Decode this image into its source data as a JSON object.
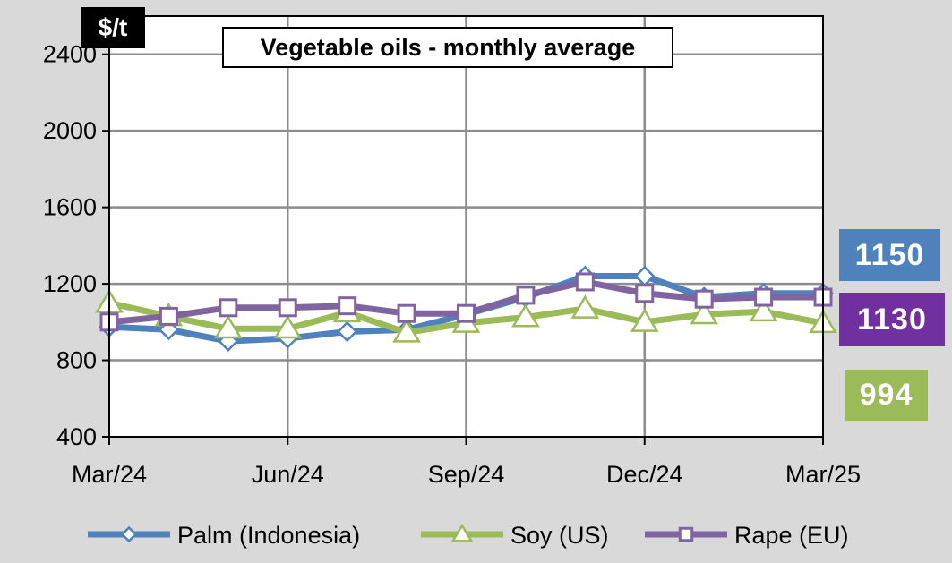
{
  "chart_data": {
    "type": "line",
    "title": "Vegetable oils - monthly average",
    "ylabel": "$/t",
    "ylim": [
      400,
      2600
    ],
    "yticks": [
      400,
      800,
      1200,
      1600,
      2000,
      2400
    ],
    "x": [
      "Mar/24",
      "Apr/24",
      "May/24",
      "Jun/24",
      "Jul/24",
      "Aug/24",
      "Sep/24",
      "Oct/24",
      "Nov/24",
      "Dec/24",
      "Jan/25",
      "Feb/25",
      "Mar/25"
    ],
    "xtick_labels": [
      "Mar/24",
      "Jun/24",
      "Sep/24",
      "Dec/24",
      "Mar/25"
    ],
    "grid": true,
    "legend": "bottom",
    "series": [
      {
        "name": "Palm (Indonesia)",
        "color": "#4f81bd",
        "marker": "diamond",
        "values": [
          975,
          960,
          900,
          915,
          950,
          960,
          1040,
          1130,
          1240,
          1240,
          1130,
          1150,
          1150
        ],
        "end_label": "1150"
      },
      {
        "name": "Soy (US)",
        "color": "#9bbb59",
        "marker": "triangle",
        "values": [
          1100,
          1030,
          965,
          965,
          1050,
          945,
          995,
          1025,
          1070,
          1000,
          1040,
          1055,
          994
        ],
        "end_label": "994"
      },
      {
        "name": "Rape (EU)",
        "color": "#8064a2",
        "marker": "square",
        "values": [
          1000,
          1030,
          1075,
          1075,
          1085,
          1045,
          1045,
          1140,
          1210,
          1150,
          1120,
          1130,
          1130
        ],
        "end_label": "1130"
      }
    ]
  }
}
